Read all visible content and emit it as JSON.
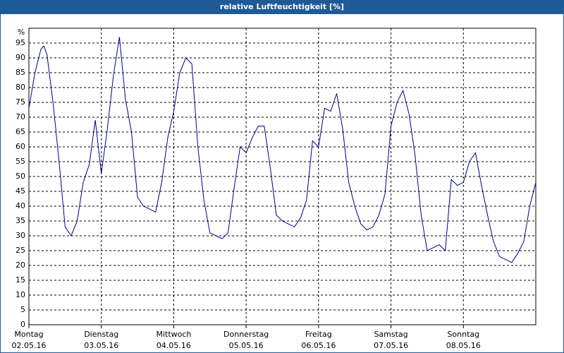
{
  "chart_data": {
    "type": "line",
    "title": "relative Luftfeuchtigkeit [%]",
    "y_label": "%",
    "x": [
      0,
      2,
      4,
      5,
      6,
      8,
      10,
      12,
      14,
      16,
      18,
      20,
      22,
      24,
      26,
      28,
      30,
      32,
      34,
      36,
      38,
      40,
      42,
      44,
      46,
      48,
      50,
      52,
      54,
      56,
      58,
      60,
      62,
      64,
      66,
      68,
      70,
      72,
      74,
      76,
      78,
      80,
      82,
      84,
      86,
      88,
      90,
      92,
      94,
      96,
      98,
      100,
      102,
      104,
      106,
      108,
      110,
      112,
      114,
      116,
      118,
      120,
      122,
      124,
      126,
      128,
      130,
      132,
      134,
      136,
      138,
      140,
      142,
      144,
      146,
      148,
      150,
      152,
      154,
      156,
      158,
      160,
      162,
      164,
      166,
      168
    ],
    "series": [
      {
        "name": "relative Luftfeuchtigkeit",
        "color": "#00008b",
        "values": [
          73,
          85,
          93,
          94,
          91,
          75,
          55,
          33,
          30,
          35,
          48,
          54,
          69,
          51,
          66,
          84,
          97,
          76,
          65,
          43,
          40,
          39,
          38,
          48,
          63,
          72,
          85,
          90,
          88,
          60,
          42,
          31,
          30,
          29,
          31,
          46,
          60,
          58,
          63,
          67,
          67,
          53,
          37,
          35,
          34,
          33,
          36,
          42,
          62,
          60,
          73,
          72,
          78,
          66,
          48,
          40,
          34,
          32,
          33,
          37,
          44,
          67,
          75,
          79,
          71,
          57,
          37,
          25,
          26,
          27,
          25,
          49,
          47,
          48,
          55,
          58,
          47,
          37,
          28,
          23,
          22,
          21,
          24,
          28,
          40,
          48
        ]
      }
    ],
    "xlim": [
      0,
      168
    ],
    "xticks": [
      {
        "value": 0,
        "label": [
          "Montag",
          "02.05.16"
        ]
      },
      {
        "value": 24,
        "label": [
          "Dienstag",
          "03.05.16"
        ]
      },
      {
        "value": 48,
        "label": [
          "Mittwoch",
          "04.05.16"
        ]
      },
      {
        "value": 72,
        "label": [
          "Donnerstag",
          "05.05.16"
        ]
      },
      {
        "value": 96,
        "label": [
          "Freitag",
          "06.05.16"
        ]
      },
      {
        "value": 120,
        "label": [
          "Samstag",
          "07.05.16"
        ]
      },
      {
        "value": 144,
        "label": [
          "Sonntag",
          "08.05.16"
        ]
      }
    ],
    "ylim": [
      0,
      100
    ],
    "yticks": [
      0,
      5,
      10,
      15,
      20,
      25,
      30,
      35,
      40,
      45,
      50,
      55,
      60,
      65,
      70,
      75,
      80,
      85,
      90,
      95
    ],
    "grid": true
  }
}
